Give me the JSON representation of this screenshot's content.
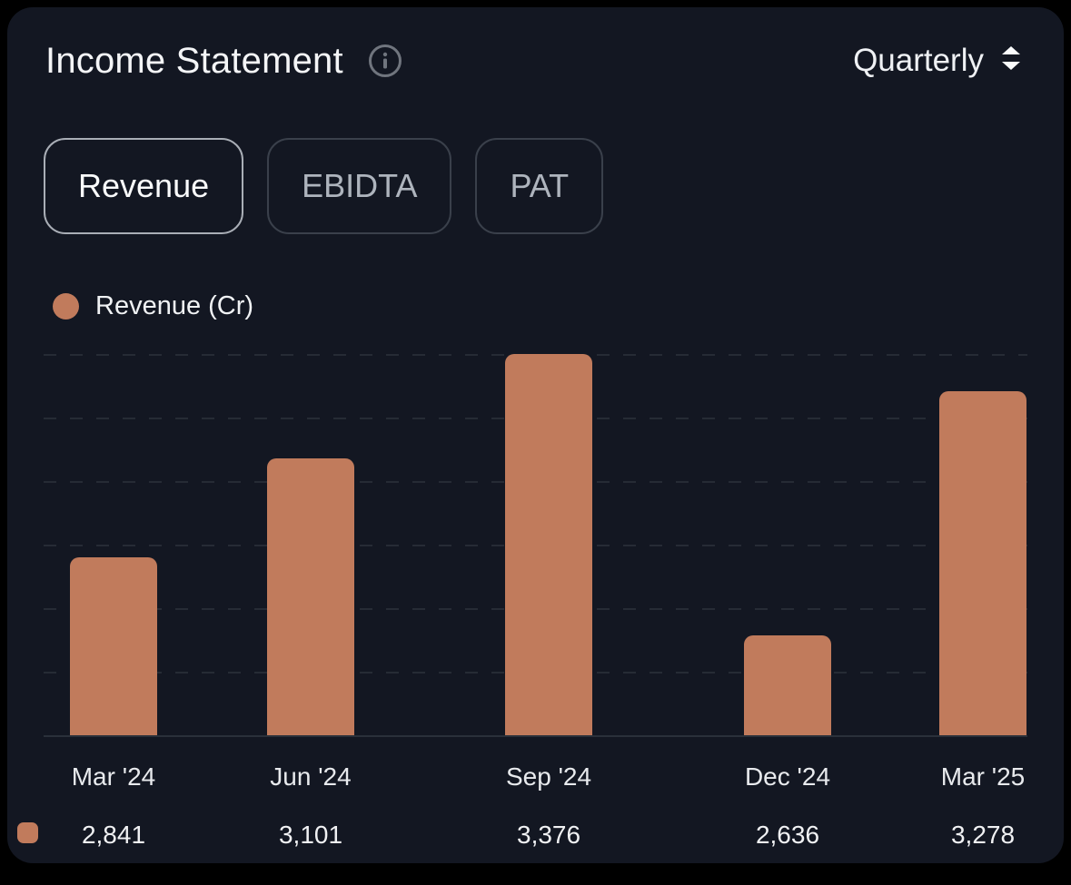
{
  "header": {
    "title": "Income Statement",
    "info_icon": "info-icon",
    "period_selector": {
      "value": "Quarterly"
    }
  },
  "tabs": {
    "items": [
      {
        "label": "Revenue",
        "active": true
      },
      {
        "label": "EBIDTA",
        "active": false
      },
      {
        "label": "PAT",
        "active": false
      }
    ]
  },
  "legend": {
    "label": "Revenue (Cr)"
  },
  "colors": {
    "accent_bar": "#C17B5C",
    "card_background": "#131722",
    "page_background": "#000000",
    "gridline": "#262B35",
    "text_primary": "#F4F5F7",
    "text_muted": "#AEB4BD"
  },
  "chart_data": {
    "type": "bar",
    "title": "Revenue (Cr)",
    "categories": [
      "Mar '24",
      "Jun '24",
      "Sep '24",
      "Dec '24",
      "Mar '25"
    ],
    "values": [
      2841,
      3101,
      3376,
      2636,
      3278
    ],
    "value_labels": [
      "2,841",
      "3,101",
      "3,376",
      "2,636",
      "3,278"
    ],
    "series_name": "Revenue (Cr)",
    "bar_color": "#C17B5C",
    "xlabel": "",
    "ylabel": "",
    "ylim": [
      2373,
      3376
    ],
    "grid": "horizontal-dashed",
    "gridline_count": 7,
    "legend_position": "top-left",
    "y_axis_ticks_visible": false
  }
}
